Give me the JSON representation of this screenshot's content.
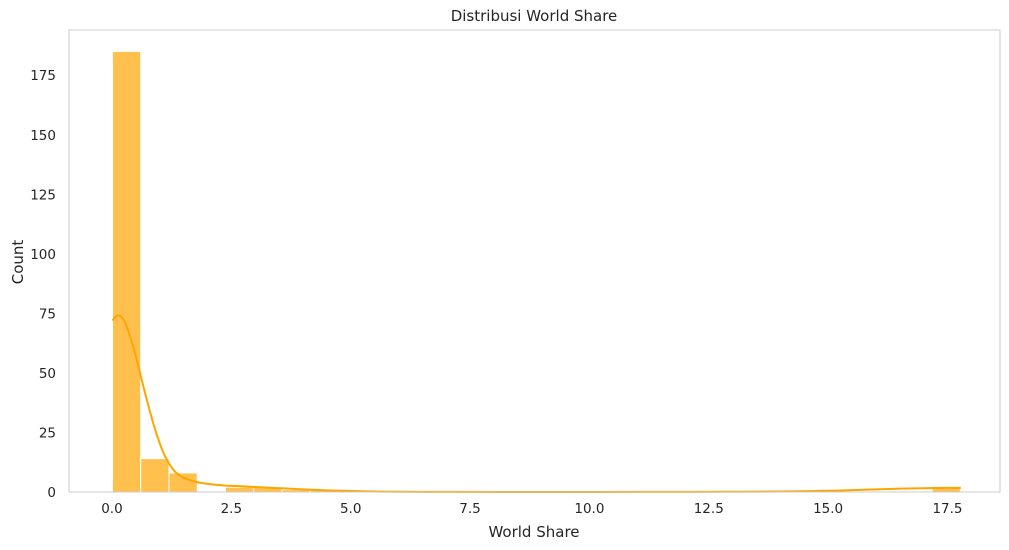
{
  "chart_data": {
    "type": "bar",
    "title": "Distribusi World Share",
    "xlabel": "World Share",
    "ylabel": "Count",
    "xlim": [
      -0.9,
      18.6
    ],
    "ylim": [
      0,
      194
    ],
    "xticks": [
      0.0,
      2.5,
      5.0,
      7.5,
      10.0,
      12.5,
      15.0,
      17.5
    ],
    "xtick_labels": [
      "0.0",
      "2.5",
      "5.0",
      "7.5",
      "10.0",
      "12.5",
      "15.0",
      "17.5"
    ],
    "yticks": [
      0,
      25,
      50,
      75,
      100,
      125,
      150,
      175
    ],
    "ytick_labels": [
      "0",
      "25",
      "50",
      "75",
      "100",
      "125",
      "150",
      "175"
    ],
    "grid": false,
    "bins": {
      "start": 0.01,
      "width": 0.592,
      "counts": [
        185,
        14,
        8,
        0,
        2,
        2,
        1,
        1,
        0,
        0,
        0,
        0,
        0,
        0,
        0,
        0,
        0,
        0,
        0,
        0,
        0,
        0,
        0,
        0,
        0,
        0,
        0,
        0,
        0,
        2
      ]
    },
    "kde": {
      "x": [
        0.01,
        0.1,
        0.2,
        0.3,
        0.4,
        0.5,
        0.6,
        0.7,
        0.8,
        0.9,
        1.0,
        1.1,
        1.2,
        1.3,
        1.4,
        1.5,
        1.6,
        1.7,
        1.8,
        1.9,
        2.0,
        2.2,
        2.4,
        2.6,
        2.8,
        3.0,
        3.3,
        3.6,
        4.0,
        4.5,
        5.0,
        5.5,
        6.0,
        7.0,
        8.0,
        10.0,
        12.0,
        14.0,
        15.0,
        15.5,
        16.0,
        16.5,
        17.0,
        17.3,
        17.6,
        17.78
      ],
      "y": [
        72,
        74,
        73.5,
        70,
        64,
        57,
        49,
        41,
        33.5,
        26.5,
        20.5,
        15.5,
        11.8,
        9,
        7.2,
        6,
        5.2,
        4.6,
        4.1,
        3.7,
        3.4,
        3.0,
        2.7,
        2.5,
        2.3,
        2.1,
        1.8,
        1.5,
        1.1,
        0.7,
        0.4,
        0.2,
        0.1,
        0.05,
        0.02,
        0.02,
        0.05,
        0.2,
        0.5,
        0.8,
        1.1,
        1.4,
        1.6,
        1.7,
        1.75,
        1.7
      ]
    },
    "colors": {
      "bar_fill": "#ffc04d",
      "bar_edge": "#ffffff",
      "kde_line": "#ffa500",
      "axis_frame": "#cccccc",
      "text": "#262626"
    }
  }
}
